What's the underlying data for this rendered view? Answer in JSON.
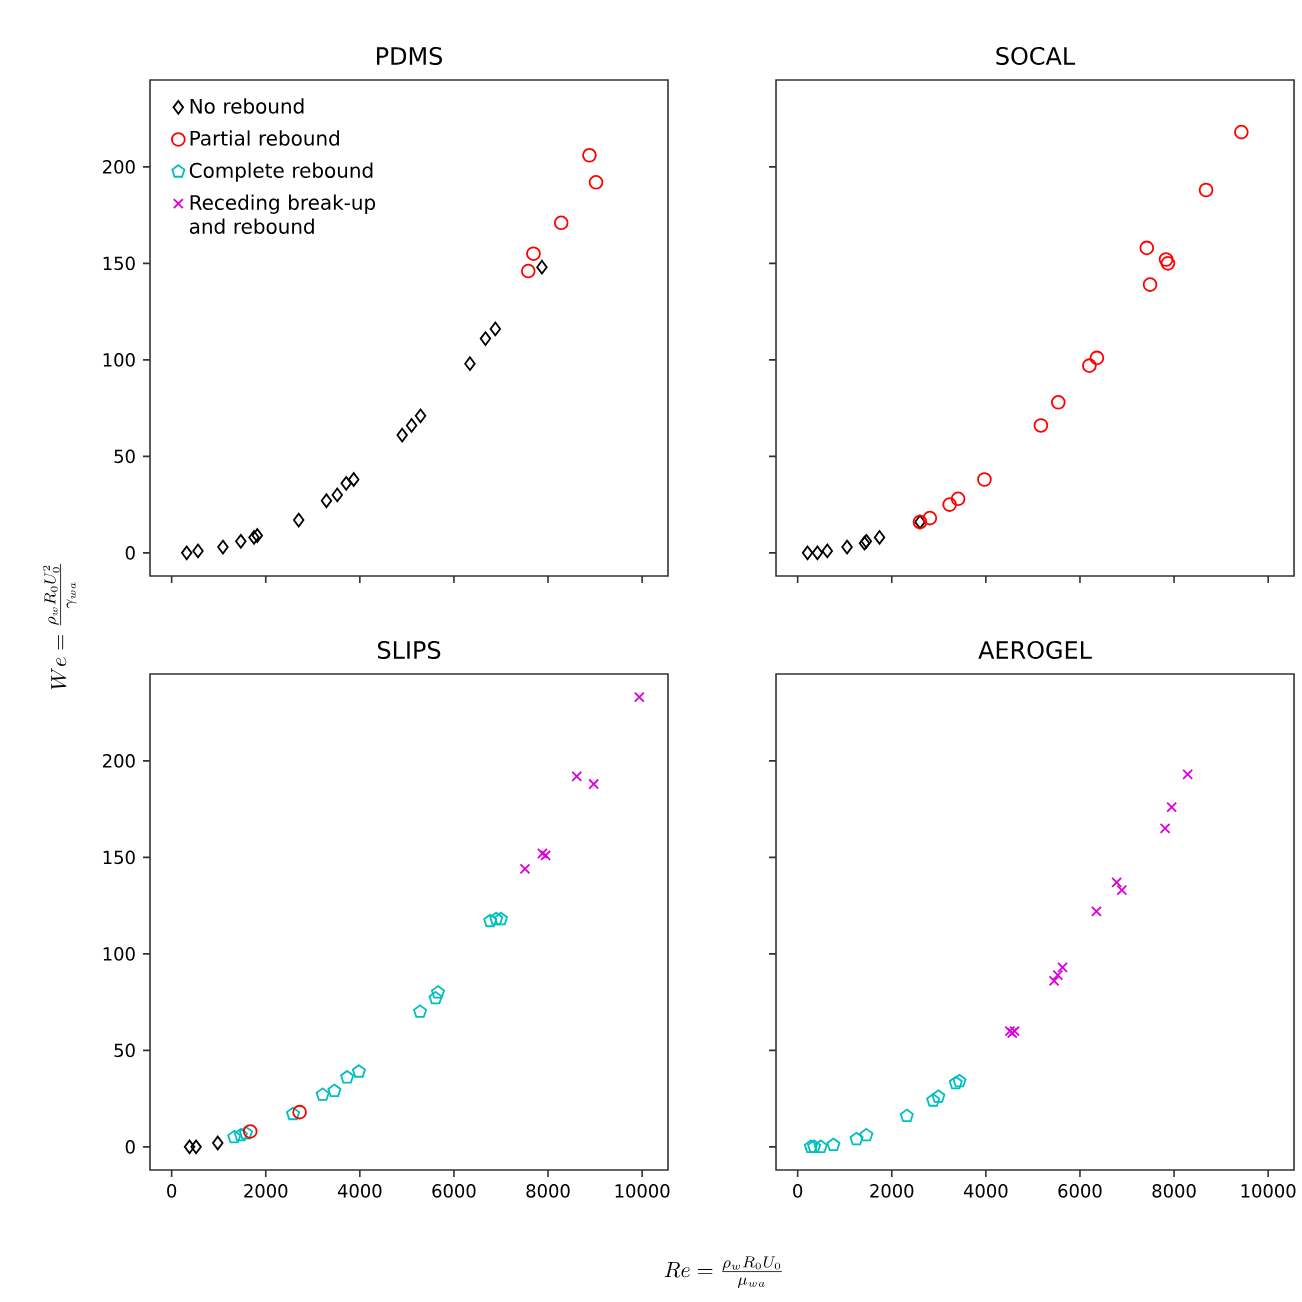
{
  "chart_data": [
    {
      "type": "scatter",
      "title": "PDMS",
      "ylabel": "We = \\frac{\\rho_w R_0 U_0^2}{\\gamma_{wa}}",
      "xlim": [
        -460,
        10550
      ],
      "ylim": [
        -12,
        245
      ],
      "xticks": [
        0,
        2000,
        4000,
        6000,
        8000,
        10000
      ],
      "yticks": [
        0,
        50,
        100,
        150,
        200
      ],
      "tick_labels": "y",
      "legend": "top left",
      "series": [
        {
          "name": "No rebound",
          "color": "#000000",
          "marker": "diamond",
          "x": [
            320,
            560,
            1090,
            1470,
            1750,
            1820,
            2700,
            3290,
            3520,
            3710,
            3870,
            4900,
            5100,
            5290,
            6340,
            6670,
            6880,
            7870
          ],
          "values": [
            0,
            1,
            3,
            6,
            8,
            9,
            17,
            27,
            30,
            36,
            38,
            61,
            66,
            71,
            98,
            111,
            116,
            148
          ]
        },
        {
          "name": "Partial rebound",
          "color": "#ff0000",
          "marker": "circle",
          "x": [
            7580,
            7690,
            8280,
            8880,
            9020
          ],
          "values": [
            146,
            155,
            171,
            206,
            192
          ]
        },
        {
          "name": "Complete rebound",
          "color": "#00bfbf"
        },
        {
          "name": "Receding break-up and rebound",
          "color": "#dd00dd",
          "marker": "cross"
        }
      ]
    },
    {
      "type": "scatter",
      "title": "SOCAL",
      "xlim": [
        -460,
        10550
      ],
      "ylim": [
        -12,
        245
      ],
      "xticks": [
        0,
        2000,
        4000,
        6000,
        8000,
        10000
      ],
      "yticks": [
        0,
        50,
        100,
        150,
        200
      ],
      "tick_labels": false,
      "series": [
        {
          "color": "#000000",
          "marker": "diamond",
          "x": [
            210,
            420,
            630,
            1050,
            1420,
            1460,
            1740,
            2600
          ],
          "values": [
            0,
            0,
            1,
            3,
            5,
            6,
            8,
            16
          ]
        },
        {
          "color": "#ff0000",
          "marker": "circle",
          "x": [
            2600,
            2810,
            3230,
            3410,
            3970,
            5170,
            5540,
            6200,
            6360,
            7420,
            7490,
            7830,
            7870,
            8680,
            9430
          ],
          "values": [
            16,
            18,
            25,
            28,
            38,
            66,
            78,
            97,
            101,
            158,
            139,
            152,
            150,
            188,
            218
          ]
        }
      ]
    },
    {
      "type": "scatter",
      "title": "SLIPS",
      "xlabel": "Re = \\frac{\\rho_w R_0 U_0}{\\mu_{wa}}",
      "xlim": [
        -460,
        10550
      ],
      "ylim": [
        -12,
        245
      ],
      "xticks": [
        0,
        2000,
        4000,
        6000,
        8000,
        10000
      ],
      "yticks": [
        0,
        50,
        100,
        150,
        200
      ],
      "series": [
        {
          "color": "#000000",
          "marker": "diamond",
          "x": [
            380,
            520,
            980
          ],
          "values": [
            0,
            0,
            2
          ]
        },
        {
          "color": "#00bfbf",
          "x": [
            1330,
            1470,
            1580,
            2580,
            3210,
            3460,
            3730,
            3980,
            5280,
            5610,
            5660,
            6770,
            6900,
            7000
          ],
          "values": [
            5,
            6,
            7,
            17,
            27,
            29,
            36,
            39,
            70,
            77,
            80,
            117,
            118,
            118
          ]
        },
        {
          "color": "#ff0000",
          "marker": "circle",
          "x": [
            1670,
            2720
          ],
          "values": [
            8,
            18
          ]
        },
        {
          "color": "#dd00dd",
          "marker": "cross",
          "x": [
            7510,
            7880,
            7950,
            8610,
            8970,
            9940
          ],
          "values": [
            144,
            152,
            151,
            192,
            188,
            233
          ]
        }
      ]
    },
    {
      "type": "scatter",
      "title": "AEROGEL",
      "xlim": [
        -460,
        10550
      ],
      "ylim": [
        -12,
        245
      ],
      "xticks": [
        0,
        2000,
        4000,
        6000,
        8000,
        10000
      ],
      "yticks": [
        0,
        50,
        100,
        150,
        200
      ],
      "tick_labels": "x",
      "series": [
        {
          "color": "#00bfbf",
          "x": [
            280,
            350,
            490,
            760,
            1250,
            1460,
            2320,
            2880,
            2990,
            3360,
            3440
          ],
          "values": [
            0,
            0,
            0,
            1,
            4,
            6,
            16,
            24,
            26,
            33,
            34
          ]
        },
        {
          "color": "#dd00dd",
          "marker": "cross",
          "x": [
            4510,
            4560,
            4610,
            5450,
            5530,
            5630,
            6350,
            6780,
            6890,
            7810,
            7950,
            8290
          ],
          "values": [
            60,
            59,
            60,
            86,
            89,
            93,
            122,
            137,
            133,
            165,
            176,
            193
          ]
        }
      ]
    }
  ]
}
